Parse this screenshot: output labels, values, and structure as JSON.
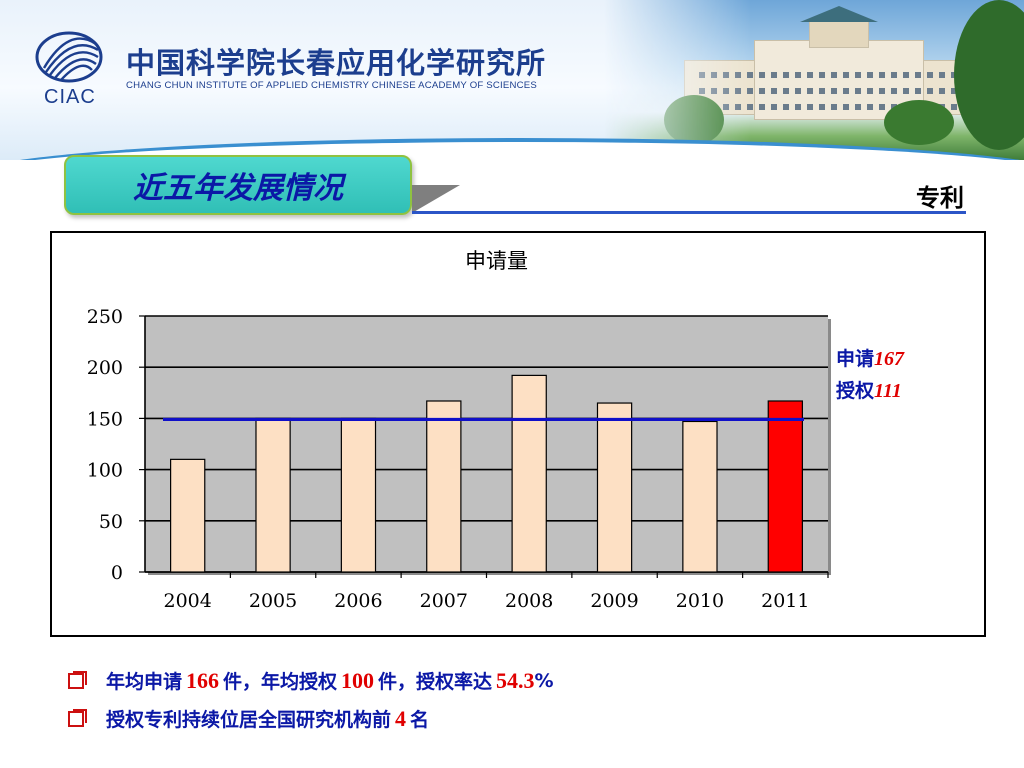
{
  "header": {
    "logo_text": "CIAC",
    "institute_cn": "中国科学院长春应用化学研究所",
    "institute_en": "CHANG CHUN INSTITUTE OF APPLIED CHEMISTRY CHINESE ACADEMY OF SCIENCES"
  },
  "section": {
    "title": "近五年发展情况",
    "subject": "专利"
  },
  "side_note": {
    "apply_label": "申请",
    "apply_value": "167",
    "grant_label": "授权",
    "grant_value": "111"
  },
  "bullets": {
    "b1_part1": "年均申请",
    "b1_num1": "166",
    "b1_part2": "件，年均授权",
    "b1_num2": "100",
    "b1_part3": "件，授权率达",
    "b1_num3": "54.3",
    "b1_part4": "%",
    "b2_part1": "授权专利持续位居全国研究机构前",
    "b2_num": "4",
    "b2_part2": "名"
  },
  "colors": {
    "bar_fill": "#fde0c4",
    "highlight_bar": "#ff0000",
    "reference_line": "#1010c8",
    "plot_background": "#c0c0c0"
  },
  "chart_data": {
    "type": "bar",
    "title": "申请量",
    "categories": [
      "2004",
      "2005",
      "2006",
      "2007",
      "2008",
      "2009",
      "2010",
      "2011"
    ],
    "values": [
      110,
      150,
      150,
      167,
      192,
      165,
      147,
      167
    ],
    "highlight_category": "2011",
    "reference_line_value": 149,
    "ylim": [
      0,
      250
    ],
    "yticks": [
      0,
      50,
      100,
      150,
      200,
      250
    ],
    "grid": true,
    "xlabel": "",
    "ylabel": ""
  }
}
